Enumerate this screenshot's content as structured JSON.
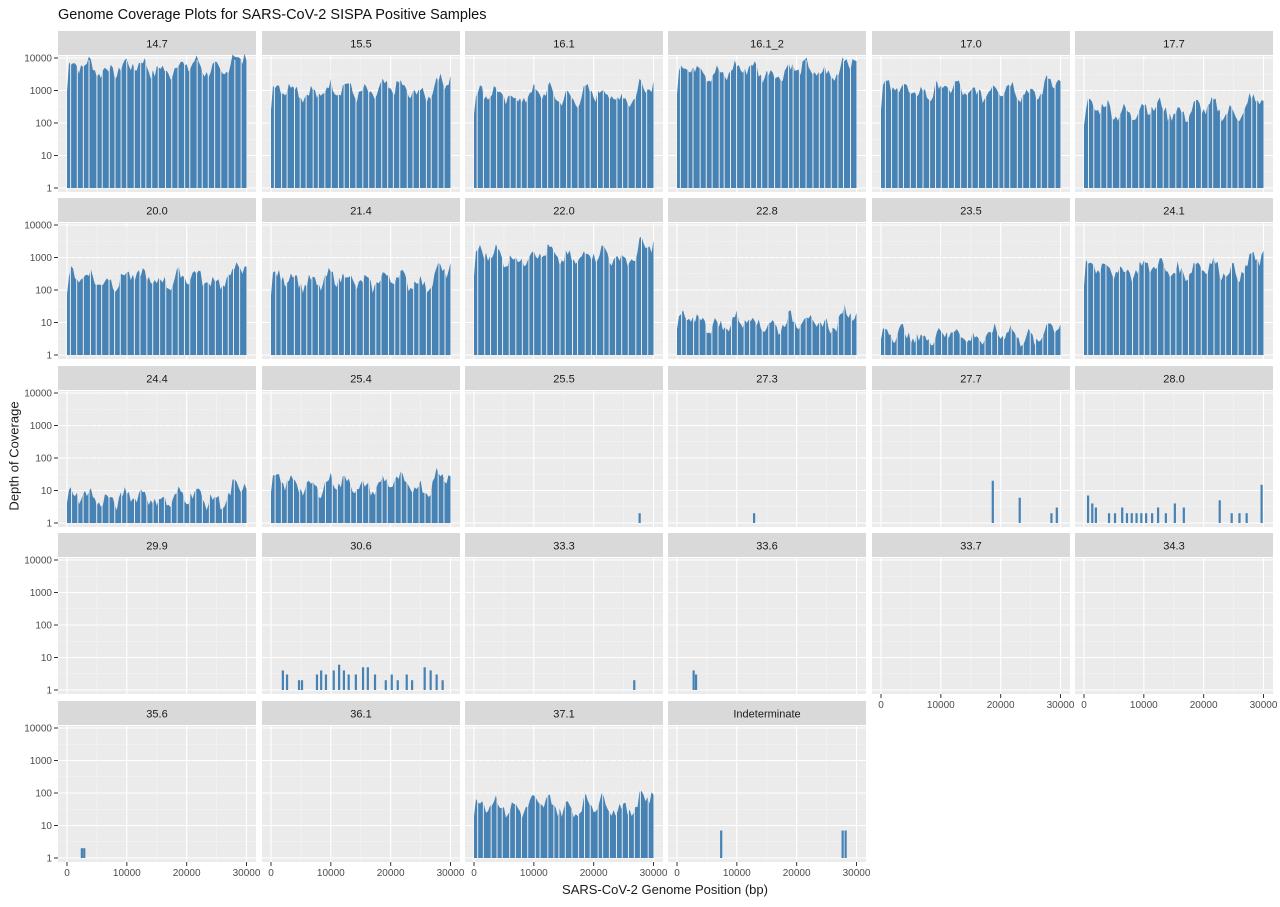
{
  "chart_data": {
    "type": "bar",
    "title": "Genome Coverage Plots for SARS-CoV-2 SISPA Positive Samples",
    "xlabel": "SARS-CoV-2 Genome Position (bp)",
    "ylabel": "Depth of Coverage",
    "y_scale": "log10",
    "ylim": [
      1,
      10000
    ],
    "y_ticks": [
      1,
      10,
      100,
      1000,
      10000
    ],
    "xlim": [
      0,
      30000
    ],
    "x_ticks": [
      0,
      10000,
      20000,
      30000
    ],
    "bar_color": "#4682b4",
    "grid": true,
    "layout": "facet grid, 6 columns, 5 rows",
    "panels": [
      {
        "label": "14.7",
        "profile": "full",
        "level": 5000
      },
      {
        "label": "15.5",
        "profile": "full",
        "level": 1000
      },
      {
        "label": "16.1",
        "profile": "full",
        "level": 700
      },
      {
        "label": "16.1_2",
        "profile": "full",
        "level": 4000
      },
      {
        "label": "17.0",
        "profile": "full",
        "level": 1000
      },
      {
        "label": "17.7",
        "profile": "full",
        "level": 250
      },
      {
        "label": "20.0",
        "profile": "full",
        "level": 220
      },
      {
        "label": "21.4",
        "profile": "full",
        "level": 200
      },
      {
        "label": "22.0",
        "profile": "full",
        "level": 1100
      },
      {
        "label": "22.8",
        "profile": "full",
        "level": 10
      },
      {
        "label": "23.5",
        "profile": "full",
        "level": 4
      },
      {
        "label": "24.1",
        "profile": "full",
        "level": 450
      },
      {
        "label": "24.4",
        "profile": "full",
        "level": 6
      },
      {
        "label": "25.4",
        "profile": "full",
        "level": 15
      },
      {
        "label": "25.5",
        "profile": "sparse",
        "bars": [
          [
            27500,
            2
          ]
        ]
      },
      {
        "label": "27.3",
        "profile": "sparse",
        "bars": [
          [
            12700,
            2
          ]
        ]
      },
      {
        "label": "27.7",
        "profile": "sparse",
        "bars": [
          [
            18500,
            20
          ],
          [
            23000,
            6
          ],
          [
            28300,
            2
          ],
          [
            29200,
            3
          ]
        ]
      },
      {
        "label": "28.0",
        "profile": "sparse",
        "bars": [
          [
            500,
            7
          ],
          [
            1200,
            4
          ],
          [
            1800,
            3
          ],
          [
            4000,
            2
          ],
          [
            5000,
            2
          ],
          [
            6200,
            3
          ],
          [
            7000,
            2
          ],
          [
            7800,
            2
          ],
          [
            8600,
            2
          ],
          [
            9400,
            2
          ],
          [
            10200,
            2
          ],
          [
            11200,
            2
          ],
          [
            12200,
            3
          ],
          [
            13500,
            2
          ],
          [
            15000,
            4
          ],
          [
            16500,
            3
          ],
          [
            22500,
            5
          ],
          [
            24500,
            2
          ],
          [
            25800,
            2
          ],
          [
            27000,
            2
          ],
          [
            29500,
            15
          ]
        ]
      },
      {
        "label": "29.9",
        "profile": "empty",
        "bars": []
      },
      {
        "label": "30.6",
        "profile": "sparse",
        "bars": [
          [
            1800,
            4
          ],
          [
            2500,
            3
          ],
          [
            4500,
            2
          ],
          [
            5000,
            2
          ],
          [
            7500,
            3
          ],
          [
            8200,
            4
          ],
          [
            9000,
            3
          ],
          [
            10300,
            4
          ],
          [
            11200,
            6
          ],
          [
            12000,
            4
          ],
          [
            12800,
            3
          ],
          [
            14000,
            3
          ],
          [
            15200,
            5
          ],
          [
            16000,
            5
          ],
          [
            17200,
            3
          ],
          [
            19000,
            2
          ],
          [
            20000,
            3
          ],
          [
            21000,
            2
          ],
          [
            22500,
            3
          ],
          [
            23400,
            2
          ],
          [
            25500,
            5
          ],
          [
            26500,
            4
          ],
          [
            27500,
            3
          ],
          [
            28500,
            2
          ]
        ]
      },
      {
        "label": "33.3",
        "profile": "sparse",
        "bars": [
          [
            26600,
            2
          ]
        ]
      },
      {
        "label": "33.6",
        "profile": "sparse",
        "bars": [
          [
            2600,
            4
          ],
          [
            3000,
            3
          ]
        ]
      },
      {
        "label": "33.7",
        "profile": "empty",
        "bars": []
      },
      {
        "label": "34.3",
        "profile": "empty",
        "bars": []
      },
      {
        "label": "35.6",
        "profile": "sparse",
        "bars": [
          [
            2300,
            2
          ],
          [
            2700,
            2
          ]
        ]
      },
      {
        "label": "36.1",
        "profile": "empty",
        "bars": []
      },
      {
        "label": "37.1",
        "profile": "full",
        "level": 40
      },
      {
        "label": "Indeterminate",
        "profile": "sparse",
        "bars": [
          [
            7200,
            7
          ],
          [
            27500,
            7
          ],
          [
            28000,
            7
          ]
        ]
      }
    ]
  }
}
